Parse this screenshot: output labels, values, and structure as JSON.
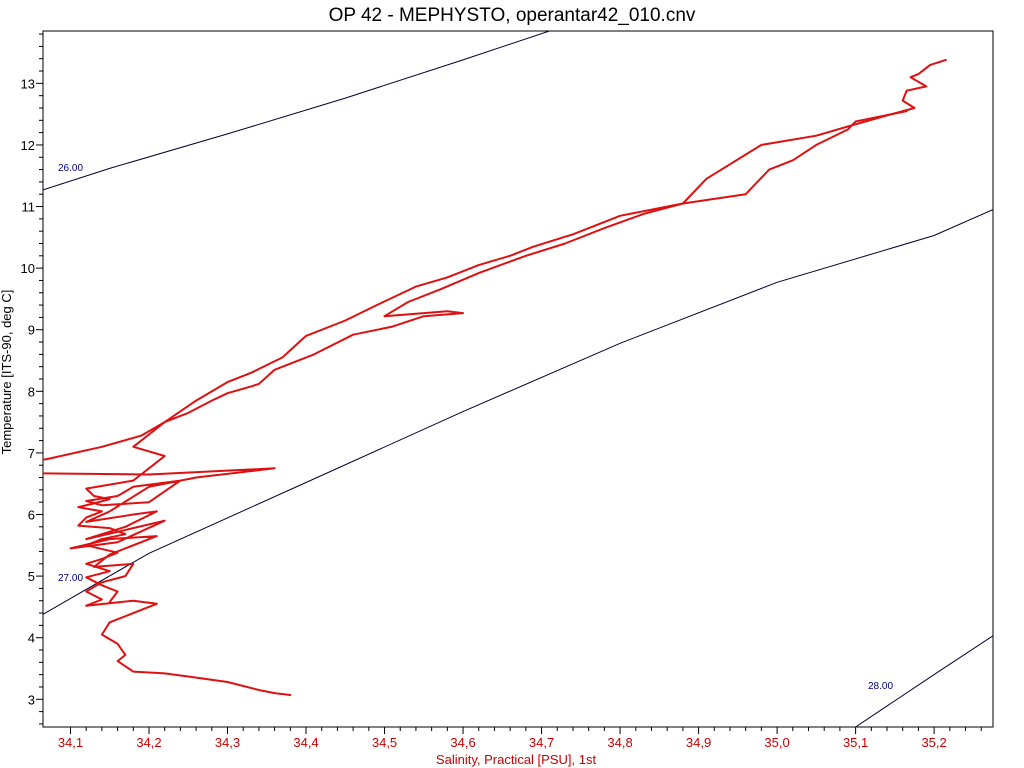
{
  "chart_data": {
    "type": "line",
    "title": "OP 42 - MEPHYSTO, operantar42_010.cnv",
    "xlabel": "Salinity, Practical [PSU], 1st",
    "ylabel": "Temperature [ITS-90, deg C]",
    "xlim": [
      34.065,
      35.275
    ],
    "ylim": [
      2.55,
      13.85
    ],
    "x_ticks": [
      34.1,
      34.2,
      34.3,
      34.4,
      34.5,
      34.6,
      34.7,
      34.8,
      34.9,
      35.0,
      35.1,
      35.2
    ],
    "x_tick_labels": [
      "34,1",
      "34,2",
      "34,3",
      "34,4",
      "34,5",
      "34,6",
      "34,7",
      "34,8",
      "34,9",
      "35,0",
      "35,1",
      "35,2"
    ],
    "y_ticks": [
      3,
      4,
      5,
      6,
      7,
      8,
      9,
      10,
      11,
      12,
      13
    ],
    "y_tick_labels": [
      "3",
      "4",
      "5",
      "6",
      "7",
      "8",
      "9",
      "10",
      "11",
      "12",
      "13"
    ],
    "grid": false,
    "colors": {
      "series": "#dd1111",
      "isopycnal": "#000033",
      "isopycnal_label": "#000080",
      "x_axis_text": "#cc0000"
    },
    "isopycnals": [
      {
        "label": "26.00",
        "points": [
          [
            34.065,
            11.27
          ],
          [
            34.15,
            11.62
          ],
          [
            34.3,
            12.18
          ],
          [
            34.45,
            12.76
          ],
          [
            34.6,
            13.38
          ],
          [
            34.71,
            13.85
          ]
        ]
      },
      {
        "label": "27.00",
        "points": [
          [
            34.065,
            4.38
          ],
          [
            34.2,
            5.37
          ],
          [
            34.4,
            6.52
          ],
          [
            34.6,
            7.67
          ],
          [
            34.8,
            8.78
          ],
          [
            35.0,
            9.77
          ],
          [
            35.2,
            10.53
          ],
          [
            35.275,
            10.95
          ]
        ]
      },
      {
        "label": "28.00",
        "points": [
          [
            35.1,
            2.55
          ],
          [
            35.2,
            3.4
          ],
          [
            35.275,
            4.03
          ]
        ]
      }
    ],
    "series": [
      {
        "points": [
          [
            35.215,
            13.38
          ],
          [
            35.195,
            13.3
          ],
          [
            35.18,
            13.15
          ],
          [
            35.17,
            13.1
          ],
          [
            35.19,
            12.95
          ],
          [
            35.165,
            12.88
          ],
          [
            35.16,
            12.72
          ],
          [
            35.175,
            12.6
          ],
          [
            35.14,
            12.48
          ],
          [
            35.09,
            12.3
          ],
          [
            35.05,
            12.15
          ],
          [
            34.98,
            12.0
          ],
          [
            34.91,
            11.45
          ],
          [
            34.88,
            11.05
          ],
          [
            34.83,
            10.88
          ],
          [
            34.78,
            10.65
          ],
          [
            34.73,
            10.4
          ],
          [
            34.68,
            10.2
          ],
          [
            34.62,
            9.92
          ],
          [
            34.57,
            9.65
          ],
          [
            34.53,
            9.45
          ],
          [
            34.5,
            9.22
          ],
          [
            34.58,
            9.3
          ],
          [
            34.6,
            9.27
          ],
          [
            34.55,
            9.22
          ],
          [
            34.51,
            9.05
          ],
          [
            34.46,
            8.92
          ],
          [
            34.41,
            8.6
          ],
          [
            34.36,
            8.35
          ],
          [
            34.34,
            8.12
          ],
          [
            34.33,
            8.08
          ],
          [
            34.3,
            7.97
          ],
          [
            34.28,
            7.85
          ],
          [
            34.25,
            7.65
          ],
          [
            34.22,
            7.5
          ],
          [
            34.19,
            7.28
          ],
          [
            34.14,
            7.1
          ],
          [
            34.07,
            6.9
          ],
          [
            34.02,
            6.8
          ],
          [
            33.98,
            6.68
          ],
          [
            34.2,
            6.65
          ],
          [
            34.36,
            6.75
          ],
          [
            34.26,
            6.6
          ],
          [
            34.24,
            6.55
          ],
          [
            34.18,
            6.45
          ],
          [
            34.16,
            6.3
          ],
          [
            34.12,
            6.22
          ],
          [
            34.14,
            6.15
          ],
          [
            34.2,
            6.2
          ],
          [
            34.24,
            6.55
          ],
          [
            34.2,
            6.45
          ],
          [
            34.15,
            6.05
          ],
          [
            34.12,
            5.88
          ],
          [
            34.18,
            6.0
          ],
          [
            34.21,
            6.05
          ],
          [
            34.17,
            5.8
          ],
          [
            34.12,
            5.6
          ],
          [
            34.16,
            5.72
          ],
          [
            34.22,
            5.9
          ],
          [
            34.16,
            5.55
          ],
          [
            34.1,
            5.45
          ],
          [
            34.15,
            5.6
          ],
          [
            34.21,
            5.65
          ],
          [
            34.15,
            5.35
          ],
          [
            34.13,
            5.15
          ],
          [
            34.18,
            5.2
          ],
          [
            34.17,
            5.0
          ],
          [
            34.14,
            4.9
          ],
          [
            34.12,
            4.75
          ],
          [
            34.14,
            4.62
          ],
          [
            34.12,
            4.52
          ],
          [
            34.18,
            4.6
          ],
          [
            34.21,
            4.55
          ],
          [
            34.18,
            4.4
          ],
          [
            34.15,
            4.25
          ],
          [
            34.14,
            4.05
          ],
          [
            34.16,
            3.9
          ],
          [
            34.17,
            3.72
          ],
          [
            34.16,
            3.62
          ],
          [
            34.18,
            3.45
          ],
          [
            34.22,
            3.42
          ],
          [
            34.25,
            3.37
          ],
          [
            34.3,
            3.28
          ],
          [
            34.34,
            3.15
          ],
          [
            34.36,
            3.1
          ],
          [
            34.38,
            3.07
          ]
        ]
      },
      {
        "points": [
          [
            35.165,
            12.55
          ],
          [
            35.1,
            12.38
          ],
          [
            35.09,
            12.25
          ],
          [
            35.05,
            12.0
          ],
          [
            35.02,
            11.75
          ],
          [
            34.99,
            11.6
          ],
          [
            34.96,
            11.2
          ],
          [
            34.88,
            11.05
          ],
          [
            34.8,
            10.85
          ],
          [
            34.74,
            10.55
          ],
          [
            34.69,
            10.35
          ],
          [
            34.66,
            10.2
          ],
          [
            34.62,
            10.05
          ],
          [
            34.58,
            9.85
          ],
          [
            34.54,
            9.7
          ],
          [
            34.49,
            9.4
          ],
          [
            34.45,
            9.15
          ],
          [
            34.4,
            8.9
          ],
          [
            34.37,
            8.55
          ],
          [
            34.33,
            8.3
          ],
          [
            34.3,
            8.15
          ],
          [
            34.26,
            7.85
          ],
          [
            34.22,
            7.5
          ],
          [
            34.18,
            7.1
          ],
          [
            34.22,
            6.95
          ],
          [
            34.2,
            6.75
          ],
          [
            34.19,
            6.65
          ],
          [
            34.18,
            6.55
          ],
          [
            34.12,
            6.42
          ],
          [
            34.13,
            6.3
          ],
          [
            34.15,
            6.25
          ],
          [
            34.13,
            6.18
          ],
          [
            34.11,
            6.12
          ],
          [
            34.14,
            6.05
          ],
          [
            34.12,
            5.95
          ],
          [
            34.11,
            5.82
          ],
          [
            34.15,
            5.78
          ],
          [
            34.17,
            5.68
          ],
          [
            34.14,
            5.6
          ],
          [
            34.12,
            5.5
          ],
          [
            34.16,
            5.38
          ],
          [
            34.14,
            5.28
          ],
          [
            34.12,
            5.2
          ],
          [
            34.15,
            5.08
          ],
          [
            34.12,
            4.98
          ],
          [
            34.14,
            4.85
          ],
          [
            34.16,
            4.75
          ],
          [
            34.15,
            4.58
          ]
        ]
      }
    ]
  }
}
